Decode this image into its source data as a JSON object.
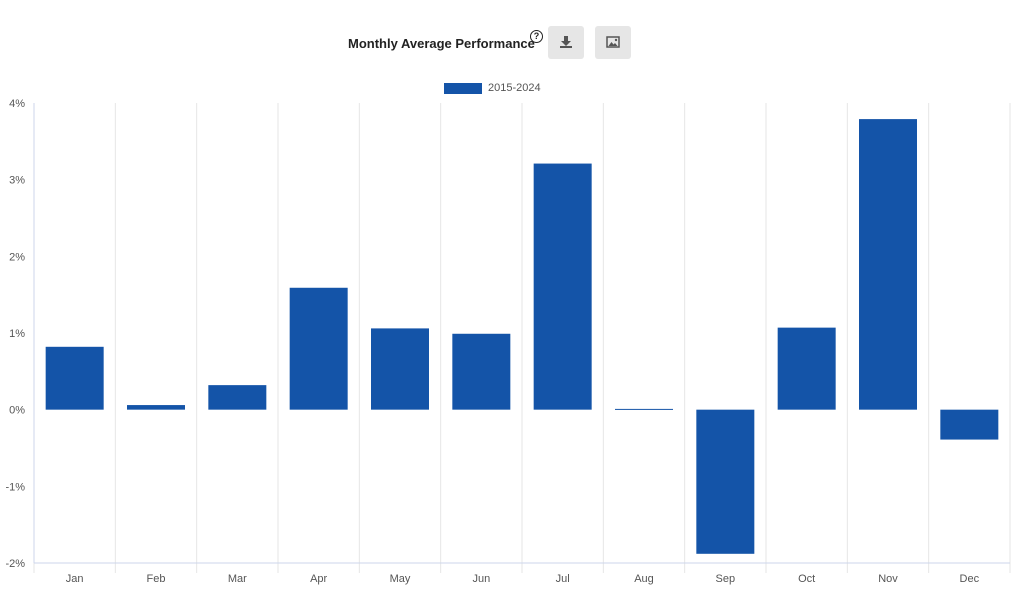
{
  "header": {
    "title": "Monthly Average Performance",
    "help_icon": "question-circle-icon",
    "download_icon": "download-icon",
    "image_icon": "image-icon"
  },
  "colors": {
    "bar": "#1454a8",
    "grid": "#e6e6e6",
    "axis_text": "#555555"
  },
  "chart_data": {
    "type": "bar",
    "title": "Monthly Average Performance",
    "categories": [
      "Jan",
      "Feb",
      "Mar",
      "Apr",
      "May",
      "Jun",
      "Jul",
      "Aug",
      "Sep",
      "Oct",
      "Nov",
      "Dec"
    ],
    "series": [
      {
        "name": "2015-2024",
        "values": [
          0.82,
          0.06,
          0.32,
          1.59,
          1.06,
          0.99,
          3.21,
          0.01,
          -1.88,
          1.07,
          3.79,
          -0.39
        ]
      }
    ],
    "y_ticks": [
      "-2%",
      "-1%",
      "0%",
      "1%",
      "2%",
      "3%",
      "4%"
    ],
    "ylim": [
      -2,
      4
    ],
    "y_unit": "%",
    "grid": "vertical",
    "legend": "top-center"
  }
}
